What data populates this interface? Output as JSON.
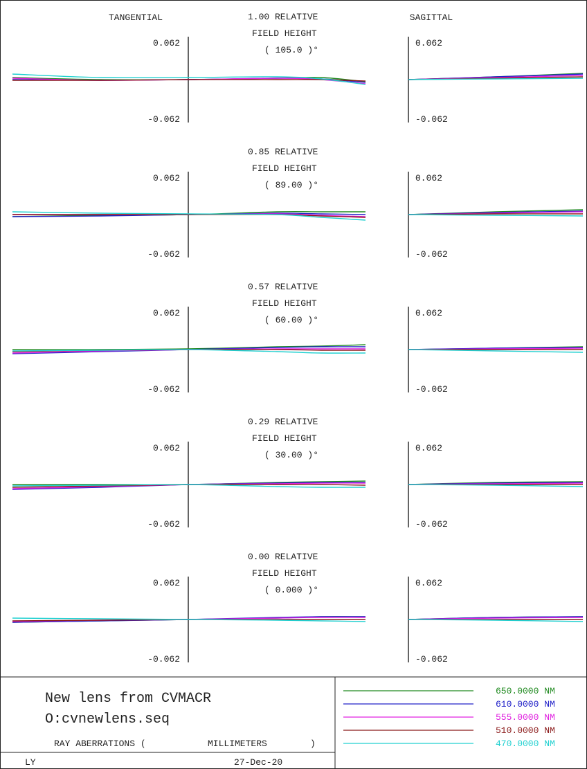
{
  "headers": {
    "tangential": "TANGENTIAL",
    "sagittal": "SAGITTAL"
  },
  "fields": [
    {
      "relative": "1.00",
      "relative_word": "RELATIVE",
      "field_height": "FIELD HEIGHT",
      "angle": "( 105.0 )°"
    },
    {
      "relative": "0.85",
      "relative_word": "RELATIVE",
      "field_height": "FIELD HEIGHT",
      "angle": "( 89.00 )°"
    },
    {
      "relative": "0.57",
      "relative_word": "RELATIVE",
      "field_height": "FIELD HEIGHT",
      "angle": "( 60.00 )°"
    },
    {
      "relative": "0.29",
      "relative_word": "RELATIVE",
      "field_height": "FIELD HEIGHT",
      "angle": "( 30.00 )°"
    },
    {
      "relative": "0.00",
      "relative_word": "RELATIVE",
      "field_height": "FIELD HEIGHT",
      "angle": "( 0.000 )°"
    }
  ],
  "scale": {
    "max_label": "0.062",
    "min_label": "-0.062"
  },
  "footer": {
    "title": "New lens from CVMACR",
    "file": "O:cvnewlens.seq",
    "ray_label": "RAY ABERRATIONS (",
    "units_label": "MILLIMETERS",
    "close_paren": ")",
    "initials": "LY",
    "date": "27-Dec-20"
  },
  "legend": [
    {
      "label": "650.0000 NM",
      "color": "#228b22"
    },
    {
      "label": "610.0000 NM",
      "color": "#2020c8"
    },
    {
      "label": "555.0000 NM",
      "color": "#e020e0"
    },
    {
      "label": "510.0000 NM",
      "color": "#8b1a1a"
    },
    {
      "label": "470.0000 NM",
      "color": "#20d0d0"
    }
  ],
  "chart_data": {
    "type": "line",
    "title": "RAY ABERRATIONS ( MILLIMETERS )",
    "ylim": [
      -0.062,
      0.062
    ],
    "x_pupil": [
      -1,
      -0.5,
      0,
      0.5,
      0.75,
      1
    ],
    "x_pupil_sagittal": [
      0,
      0.5,
      1
    ],
    "series_names": [
      "650.0000 NM",
      "610.0000 NM",
      "555.0000 NM",
      "510.0000 NM",
      "470.0000 NM"
    ],
    "plots": [
      {
        "field": "1.00",
        "tangential": [
          {
            "name": "650.0000 NM",
            "values": [
              0.003,
              0.0,
              0.0,
              0.002,
              0.003,
              -0.003
            ]
          },
          {
            "name": "610.0000 NM",
            "values": [
              0.0,
              -0.001,
              0.0,
              0.002,
              0.001,
              -0.004
            ]
          },
          {
            "name": "555.0000 NM",
            "values": [
              0.002,
              -0.001,
              0.0,
              0.002,
              0.0,
              -0.006
            ]
          },
          {
            "name": "510.0000 NM",
            "values": [
              -0.001,
              -0.001,
              0.0,
              0.0,
              0.0,
              -0.002
            ]
          },
          {
            "name": "470.0000 NM",
            "values": [
              0.008,
              0.003,
              0.003,
              0.004,
              0.001,
              -0.007
            ]
          }
        ],
        "sagittal": [
          {
            "name": "650.0000 NM",
            "values": [
              0.0,
              0.004,
              0.009
            ]
          },
          {
            "name": "610.0000 NM",
            "values": [
              0.0,
              0.004,
              0.008
            ]
          },
          {
            "name": "555.0000 NM",
            "values": [
              0.0,
              0.003,
              0.006
            ]
          },
          {
            "name": "510.0000 NM",
            "values": [
              0.0,
              0.002,
              0.004
            ]
          },
          {
            "name": "470.0000 NM",
            "values": [
              0.0,
              0.001,
              0.002
            ]
          }
        ]
      },
      {
        "field": "0.85",
        "tangential": [
          {
            "name": "650.0000 NM",
            "values": [
              -0.003,
              -0.001,
              0.0,
              0.004,
              0.004,
              0.004
            ]
          },
          {
            "name": "610.0000 NM",
            "values": [
              -0.003,
              -0.002,
              0.0,
              0.002,
              0.001,
              0.0
            ]
          },
          {
            "name": "555.0000 NM",
            "values": [
              0.0,
              0.0,
              0.0,
              0.001,
              -0.001,
              -0.003
            ]
          },
          {
            "name": "510.0000 NM",
            "values": [
              0.0,
              0.0,
              0.0,
              0.0,
              -0.002,
              -0.004
            ]
          },
          {
            "name": "470.0000 NM",
            "values": [
              0.004,
              0.002,
              0.001,
              0.0,
              -0.004,
              -0.008
            ]
          }
        ],
        "sagittal": [
          {
            "name": "650.0000 NM",
            "values": [
              0.0,
              0.004,
              0.007
            ]
          },
          {
            "name": "610.0000 NM",
            "values": [
              0.0,
              0.003,
              0.005
            ]
          },
          {
            "name": "555.0000 NM",
            "values": [
              0.0,
              0.002,
              0.004
            ]
          },
          {
            "name": "510.0000 NM",
            "values": [
              0.0,
              0.001,
              0.001
            ]
          },
          {
            "name": "470.0000 NM",
            "values": [
              0.0,
              -0.001,
              -0.002
            ]
          }
        ]
      },
      {
        "field": "0.57",
        "tangential": [
          {
            "name": "650.0000 NM",
            "values": [
              0.0,
              0.0,
              0.001,
              0.004,
              0.005,
              0.007
            ]
          },
          {
            "name": "610.0000 NM",
            "values": [
              -0.006,
              -0.003,
              0.0,
              0.003,
              0.004,
              0.004
            ]
          },
          {
            "name": "555.0000 NM",
            "values": [
              -0.005,
              -0.002,
              0.0,
              0.001,
              0.001,
              0.001
            ]
          },
          {
            "name": "510.0000 NM",
            "values": [
              -0.003,
              -0.001,
              0.0,
              0.0,
              -0.001,
              -0.001
            ]
          },
          {
            "name": "470.0000 NM",
            "values": [
              -0.002,
              -0.001,
              0.0,
              -0.003,
              -0.005,
              -0.005
            ]
          }
        ],
        "sagittal": [
          {
            "name": "650.0000 NM",
            "values": [
              0.0,
              0.002,
              0.004
            ]
          },
          {
            "name": "610.0000 NM",
            "values": [
              0.0,
              0.002,
              0.003
            ]
          },
          {
            "name": "555.0000 NM",
            "values": [
              0.0,
              0.001,
              0.002
            ]
          },
          {
            "name": "510.0000 NM",
            "values": [
              0.0,
              0.0,
              0.0
            ]
          },
          {
            "name": "470.0000 NM",
            "values": [
              0.0,
              -0.002,
              -0.004
            ]
          }
        ]
      },
      {
        "field": "0.29",
        "tangential": [
          {
            "name": "650.0000 NM",
            "values": [
              0.0,
              0.0,
              0.0,
              0.003,
              0.004,
              0.005
            ]
          },
          {
            "name": "610.0000 NM",
            "values": [
              -0.007,
              -0.004,
              0.0,
              0.002,
              0.003,
              0.003
            ]
          },
          {
            "name": "555.0000 NM",
            "values": [
              -0.006,
              -0.003,
              0.0,
              0.001,
              0.002,
              0.002
            ]
          },
          {
            "name": "510.0000 NM",
            "values": [
              -0.004,
              -0.002,
              0.0,
              0.0,
              0.0,
              -0.001
            ]
          },
          {
            "name": "470.0000 NM",
            "values": [
              -0.002,
              -0.001,
              0.0,
              -0.003,
              -0.004,
              -0.004
            ]
          }
        ],
        "sagittal": [
          {
            "name": "650.0000 NM",
            "values": [
              0.0,
              0.003,
              0.004
            ]
          },
          {
            "name": "610.0000 NM",
            "values": [
              0.0,
              0.002,
              0.003
            ]
          },
          {
            "name": "555.0000 NM",
            "values": [
              0.0,
              0.001,
              0.002
            ]
          },
          {
            "name": "510.0000 NM",
            "values": [
              0.0,
              0.0,
              0.0
            ]
          },
          {
            "name": "470.0000 NM",
            "values": [
              0.0,
              -0.001,
              -0.003
            ]
          }
        ]
      },
      {
        "field": "0.00",
        "tangential": [
          {
            "name": "650.0000 NM",
            "values": [
              -0.004,
              -0.002,
              0.0,
              0.002,
              0.004,
              0.004
            ]
          },
          {
            "name": "610.0000 NM",
            "values": [
              -0.004,
              -0.002,
              0.0,
              0.003,
              0.004,
              0.004
            ]
          },
          {
            "name": "555.0000 NM",
            "values": [
              -0.003,
              -0.001,
              0.0,
              0.002,
              0.003,
              0.003
            ]
          },
          {
            "name": "510.0000 NM",
            "values": [
              -0.002,
              -0.001,
              0.0,
              0.0,
              0.0,
              0.0
            ]
          },
          {
            "name": "470.0000 NM",
            "values": [
              0.002,
              0.001,
              0.0,
              -0.001,
              -0.002,
              -0.003
            ]
          }
        ],
        "sagittal": [
          {
            "name": "650.0000 NM",
            "values": [
              0.0,
              0.003,
              0.004
            ]
          },
          {
            "name": "610.0000 NM",
            "values": [
              0.0,
              0.003,
              0.004
            ]
          },
          {
            "name": "555.0000 NM",
            "values": [
              0.0,
              0.002,
              0.003
            ]
          },
          {
            "name": "510.0000 NM",
            "values": [
              0.0,
              0.0,
              0.0
            ]
          },
          {
            "name": "470.0000 NM",
            "values": [
              0.0,
              -0.001,
              -0.003
            ]
          }
        ]
      }
    ]
  }
}
